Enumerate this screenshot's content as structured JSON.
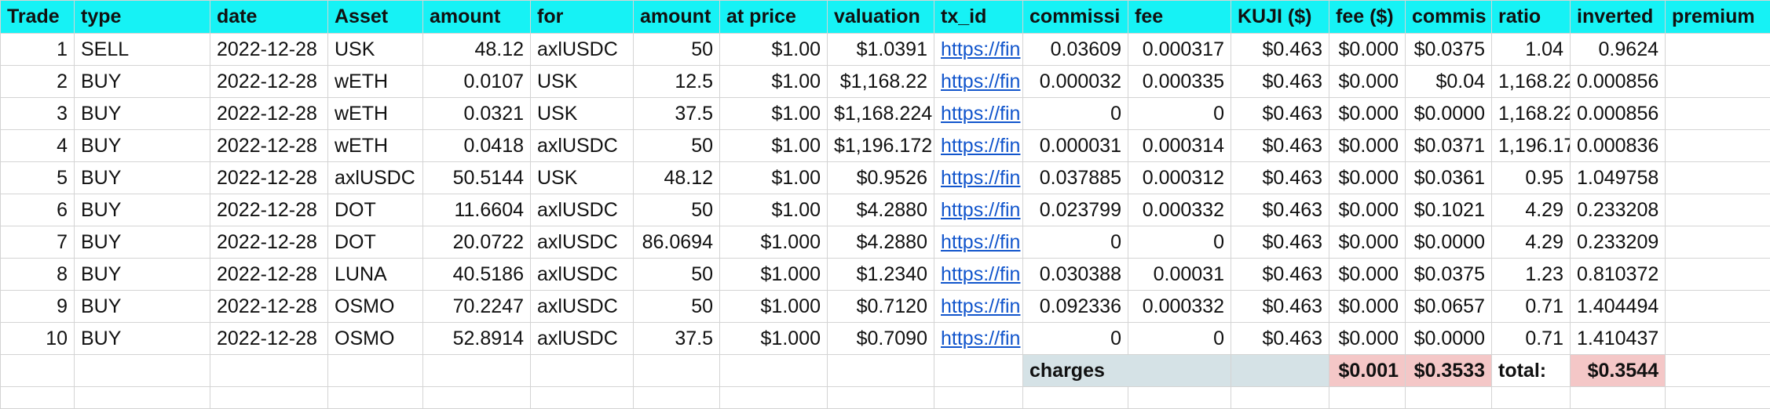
{
  "headers": [
    "Trade",
    "type",
    "date",
    "Asset",
    "amount",
    "for",
    "amount",
    "at price",
    "valuation",
    "tx_id",
    "commissi",
    "fee",
    "KUJI ($)",
    "fee ($)",
    "commis",
    "ratio",
    "inverted",
    "premium"
  ],
  "rows": [
    [
      "1",
      "SELL",
      "2022-12-28",
      "USK",
      "48.12",
      "axlUSDC",
      "50",
      "$1.00",
      "$1.0391",
      "https://fin",
      "0.03609",
      "0.000317",
      "$0.463",
      "$0.000",
      "$0.0375",
      "1.04",
      "0.9624"
    ],
    [
      "2",
      "BUY",
      "2022-12-28",
      "wETH",
      "0.0107",
      "USK",
      "12.5",
      "$1.00",
      "$1,168.22",
      "https://fin",
      "0.000032",
      "0.000335",
      "$0.463",
      "$0.000",
      "$0.04",
      "1,168.22",
      "0.000856"
    ],
    [
      "3",
      "BUY",
      "2022-12-28",
      "wETH",
      "0.0321",
      "USK",
      "37.5",
      "$1.00",
      "$1,168.224",
      "https://fin",
      "0",
      "0",
      "$0.463",
      "$0.000",
      "$0.0000",
      "1,168.22",
      "0.000856"
    ],
    [
      "4",
      "BUY",
      "2022-12-28",
      "wETH",
      "0.0418",
      "axlUSDC",
      "50",
      "$1.00",
      "$1,196.172",
      "https://fin",
      "0.000031",
      "0.000314",
      "$0.463",
      "$0.000",
      "$0.0371",
      "1,196.17",
      "0.000836"
    ],
    [
      "5",
      "BUY",
      "2022-12-28",
      "axlUSDC",
      "50.5144",
      "USK",
      "48.12",
      "$1.00",
      "$0.9526",
      "https://fin",
      "0.037885",
      "0.000312",
      "$0.463",
      "$0.000",
      "$0.0361",
      "0.95",
      "1.049758"
    ],
    [
      "6",
      "BUY",
      "2022-12-28",
      "DOT",
      "11.6604",
      "axlUSDC",
      "50",
      "$1.00",
      "$4.2880",
      "https://fin",
      "0.023799",
      "0.000332",
      "$0.463",
      "$0.000",
      "$0.1021",
      "4.29",
      "0.233208"
    ],
    [
      "7",
      "BUY",
      "2022-12-28",
      "DOT",
      "20.0722",
      "axlUSDC",
      "86.0694",
      "$1.000",
      "$4.2880",
      "https://fin",
      "0",
      "0",
      "$0.463",
      "$0.000",
      "$0.0000",
      "4.29",
      "0.233209"
    ],
    [
      "8",
      "BUY",
      "2022-12-28",
      "LUNA",
      "40.5186",
      "axlUSDC",
      "50",
      "$1.000",
      "$1.2340",
      "https://fin",
      "0.030388",
      "0.00031",
      "$0.463",
      "$0.000",
      "$0.0375",
      "1.23",
      "0.810372"
    ],
    [
      "9",
      "BUY",
      "2022-12-28",
      "OSMO",
      "70.2247",
      "axlUSDC",
      "50",
      "$1.000",
      "$0.7120",
      "https://fin",
      "0.092336",
      "0.000332",
      "$0.463",
      "$0.000",
      "$0.0657",
      "0.71",
      "1.404494"
    ],
    [
      "10",
      "BUY",
      "2022-12-28",
      "OSMO",
      "52.8914",
      "axlUSDC",
      "37.5",
      "$1.000",
      "$0.7090",
      "https://fin",
      "0",
      "0",
      "$0.463",
      "$0.000",
      "$0.0000",
      "0.71",
      "1.410437"
    ]
  ],
  "summary": {
    "charges_label": "charges",
    "fee_total": "$0.001",
    "commission_total": "$0.3533",
    "total_label": "total:",
    "total_value": "$0.3544"
  },
  "colors": {
    "header_bg": "#16f2f5",
    "charges_bg": "#d5e2e6",
    "total_bg": "#f4c7c7",
    "link": "#1155cc"
  }
}
